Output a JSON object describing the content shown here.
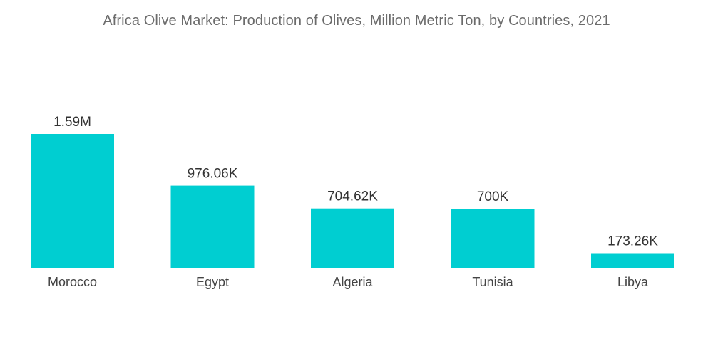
{
  "chart_data": {
    "type": "bar",
    "title": "Africa Olive Market: Production of Olives, Million Metric Ton, by Countries, 2021",
    "xlabel": "",
    "ylabel": "",
    "categories": [
      "Morocco",
      "Egypt",
      "Algeria",
      "Tunisia",
      "Libya"
    ],
    "values": [
      1590000,
      976060,
      704620,
      700000,
      173260
    ],
    "value_labels": [
      "1.59M",
      "976.06K",
      "704.62K",
      "700K",
      "173.26K"
    ],
    "ylim": [
      0,
      1590000
    ],
    "grid": false,
    "legend": "none",
    "colors": {
      "bar": "#00ced1"
    }
  }
}
